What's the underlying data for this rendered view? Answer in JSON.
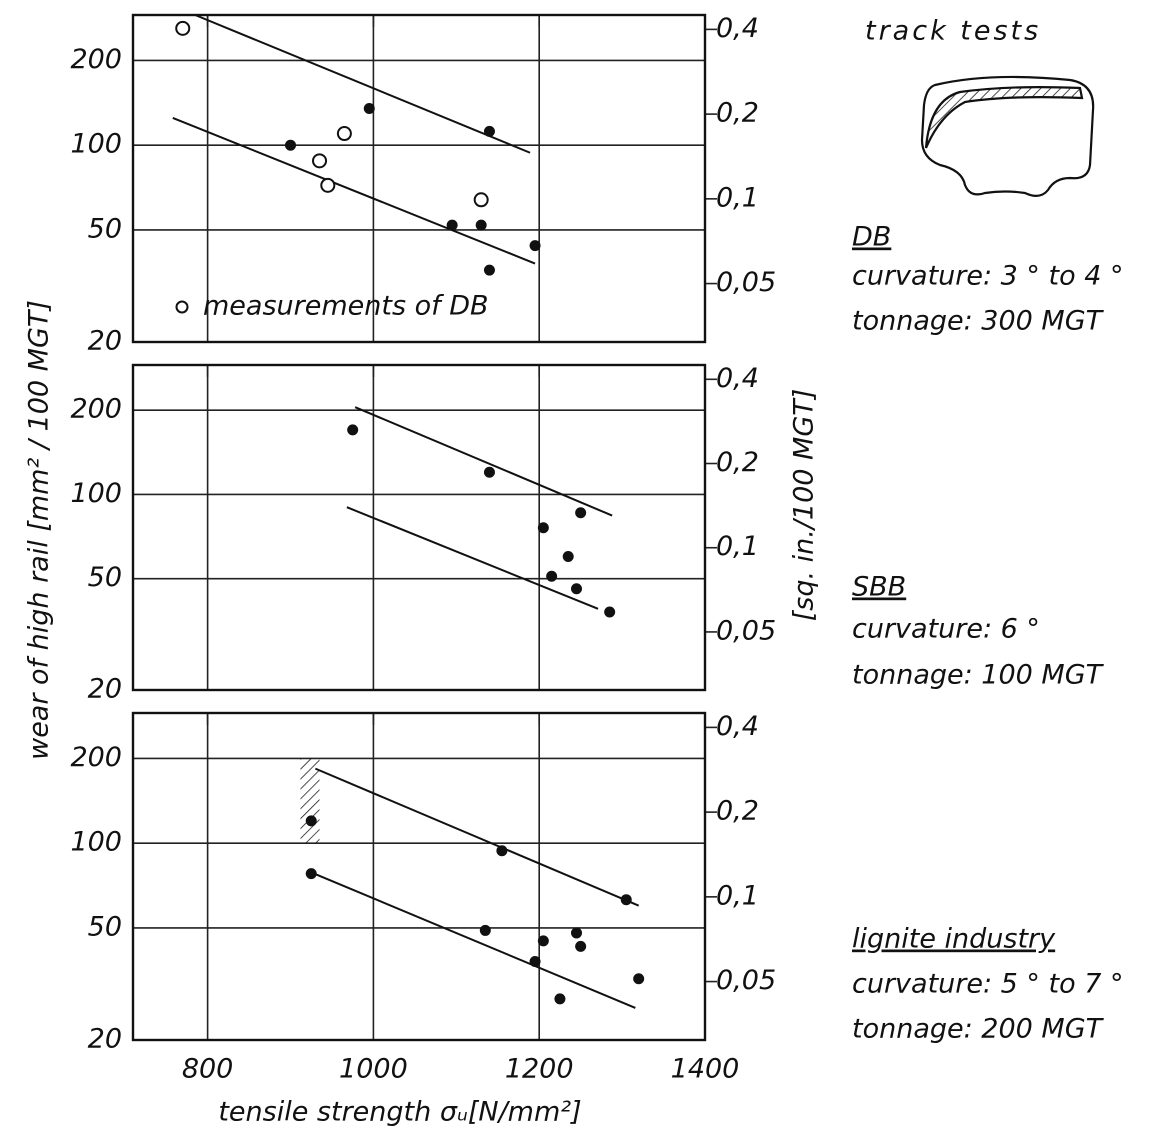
{
  "chart_data": [
    {
      "type": "scatter",
      "annotation": "track tests",
      "xlim": [
        710,
        1400
      ],
      "xticks": [
        800,
        1000,
        1200,
        1400
      ],
      "ylog": true,
      "ylim": [
        20,
        290
      ],
      "yticks": [
        20,
        50,
        100,
        200
      ],
      "y2lim": [
        0.031,
        0.45
      ],
      "y2ticks": [
        {
          "value": 0.05,
          "label": "0,05"
        },
        {
          "value": 0.1,
          "label": "0,1"
        },
        {
          "value": 0.2,
          "label": "0,2"
        },
        {
          "value": 0.4,
          "label": "0,4"
        }
      ],
      "grid": true,
      "series": [
        {
          "marker": "filled",
          "color": "#111111",
          "x": [
            900,
            995,
            1095,
            1130,
            1140,
            1140,
            1195
          ],
          "values": [
            100,
            135,
            52,
            52,
            112,
            36,
            44
          ]
        },
        {
          "name": "measurements of DB",
          "marker": "open",
          "color": "#111111",
          "x": [
            770,
            965,
            935,
            945,
            1130
          ],
          "values": [
            260,
            110,
            88,
            72,
            64
          ]
        }
      ],
      "trend_lines": [
        {
          "x": [
            785,
            1189
          ],
          "values": [
            290,
            94
          ]
        },
        {
          "x": [
            758,
            1195
          ],
          "values": [
            125,
            38
          ]
        }
      ],
      "caption_title": "DB",
      "caption": [
        "curvature: 3 ° to 4 °",
        "tonnage: 300 MGT"
      ]
    },
    {
      "type": "scatter",
      "ylabel": "wear of high rail   [mm² / 100 MGT]",
      "y2label": "[sq. in./100 MGT]",
      "xlim": [
        710,
        1400
      ],
      "xticks": [
        800,
        1000,
        1200,
        1400
      ],
      "ylog": true,
      "ylim": [
        20,
        290
      ],
      "yticks": [
        20,
        50,
        100,
        200
      ],
      "y2lim": [
        0.031,
        0.45
      ],
      "y2ticks": [
        {
          "value": 0.05,
          "label": "0,05"
        },
        {
          "value": 0.1,
          "label": "0,1"
        },
        {
          "value": 0.2,
          "label": "0,2"
        },
        {
          "value": 0.4,
          "label": "0,4"
        }
      ],
      "grid": true,
      "series": [
        {
          "marker": "filled",
          "color": "#111111",
          "x": [
            975,
            1140,
            1250,
            1205,
            1235,
            1215,
            1245,
            1285
          ],
          "values": [
            170,
            120,
            86,
            76,
            60,
            51,
            46,
            38
          ]
        }
      ],
      "trend_lines": [
        {
          "x": [
            978,
            1288
          ],
          "values": [
            205,
            84
          ]
        },
        {
          "x": [
            968,
            1271
          ],
          "values": [
            90,
            39
          ]
        }
      ],
      "caption_title": "SBB",
      "caption": [
        "curvature: 6 °",
        "tonnage: 100 MGT"
      ]
    },
    {
      "type": "scatter",
      "xlabel": "tensile strength σᵤ[N/mm²]",
      "xlim": [
        710,
        1400
      ],
      "xticks": [
        800,
        1000,
        1200,
        1400
      ],
      "ylog": true,
      "ylim": [
        20,
        290
      ],
      "yticks": [
        20,
        50,
        100,
        200
      ],
      "y2lim": [
        0.031,
        0.45
      ],
      "y2ticks": [
        {
          "value": 0.05,
          "label": "0,05"
        },
        {
          "value": 0.1,
          "label": "0,1"
        },
        {
          "value": 0.2,
          "label": "0,2"
        },
        {
          "value": 0.4,
          "label": "0,4"
        }
      ],
      "grid": true,
      "series": [
        {
          "marker": "filled",
          "color": "#111111",
          "x": [
            925,
            925,
            1155,
            1305,
            1135,
            1245,
            1205,
            1250,
            1195,
            1320,
            1225
          ],
          "values": [
            120,
            78,
            94,
            63,
            49,
            48,
            45,
            43,
            38,
            33,
            28
          ]
        }
      ],
      "hatched_range": {
        "x": [
          912,
          935
        ],
        "values": [
          100,
          200
        ]
      },
      "trend_lines": [
        {
          "x": [
            930,
            1320
          ],
          "values": [
            184,
            60
          ]
        },
        {
          "x": [
            924,
            1316
          ],
          "values": [
            79,
            26
          ]
        }
      ],
      "caption_title": "lignite industry",
      "caption": [
        "curvature: 5 ° to 7 °",
        "tonnage: 200 MGT"
      ]
    }
  ]
}
